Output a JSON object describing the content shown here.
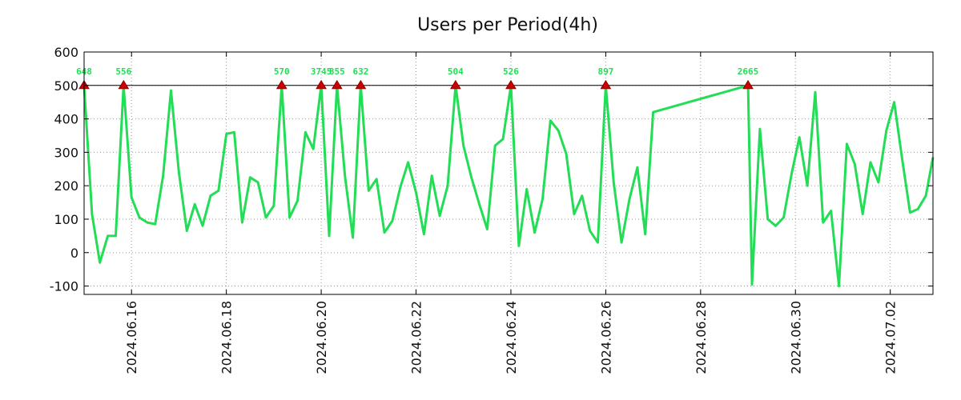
{
  "chart_data": {
    "type": "line",
    "title": "Users per Period(4h)",
    "xlabel": "",
    "ylabel": "",
    "x_unit": "days since 2024.06.15 00:00",
    "xlim": [
      0,
      17.9
    ],
    "ylim": [
      -125,
      600
    ],
    "yticks": [
      -100,
      0,
      100,
      200,
      300,
      400,
      500,
      600
    ],
    "xticks": [
      {
        "x": 1.0,
        "label": "2024.06.16"
      },
      {
        "x": 3.0,
        "label": "2024.06.18"
      },
      {
        "x": 5.0,
        "label": "2024.06.20"
      },
      {
        "x": 7.0,
        "label": "2024.06.22"
      },
      {
        "x": 9.0,
        "label": "2024.06.24"
      },
      {
        "x": 11.0,
        "label": "2024.06.26"
      },
      {
        "x": 13.0,
        "label": "2024.06.28"
      },
      {
        "x": 15.0,
        "label": "2024.06.30"
      },
      {
        "x": 17.0,
        "label": "2024.07.02"
      }
    ],
    "grid": true,
    "threshold": 500,
    "line_color": "#22dd55",
    "threshold_color": "#000000",
    "marker_color": "#cc0000",
    "label_color": "#22dd55",
    "series": [
      {
        "name": "Users",
        "x": [
          0,
          0.167,
          0.333,
          0.5,
          0.667,
          0.833,
          1.0,
          1.167,
          1.333,
          1.5,
          1.667,
          1.833,
          2.0,
          2.167,
          2.333,
          2.5,
          2.667,
          2.833,
          3.0,
          3.167,
          3.333,
          3.5,
          3.667,
          3.833,
          4.0,
          4.167,
          4.333,
          4.5,
          4.667,
          4.833,
          5.0,
          5.167,
          5.333,
          5.5,
          5.667,
          5.833,
          6.0,
          6.167,
          6.333,
          6.5,
          6.667,
          6.833,
          7.0,
          7.167,
          7.333,
          7.5,
          7.667,
          7.833,
          8.0,
          8.167,
          8.333,
          8.5,
          8.667,
          8.833,
          9.0,
          9.167,
          9.333,
          9.5,
          9.667,
          9.833,
          10.0,
          10.167,
          10.333,
          10.5,
          10.667,
          10.833,
          11.0,
          11.167,
          11.333,
          11.5,
          11.667,
          11.833,
          12.0,
          14.0,
          14.083,
          14.25,
          14.417,
          14.583,
          14.75,
          14.917,
          15.083,
          15.25,
          15.417,
          15.583,
          15.75,
          15.917,
          16.083,
          16.25,
          16.417,
          16.583,
          16.75,
          16.917,
          17.083,
          17.25,
          17.417,
          17.583,
          17.75,
          17.9
        ],
        "y": [
          500,
          115,
          -30,
          50,
          50,
          500,
          165,
          105,
          90,
          85,
          230,
          485,
          240,
          65,
          145,
          80,
          170,
          185,
          355,
          360,
          90,
          225,
          210,
          105,
          140,
          500,
          105,
          155,
          360,
          310,
          500,
          50,
          500,
          230,
          45,
          500,
          185,
          220,
          60,
          95,
          195,
          270,
          180,
          55,
          230,
          110,
          200,
          500,
          320,
          225,
          145,
          70,
          320,
          340,
          500,
          20,
          190,
          60,
          160,
          395,
          365,
          295,
          115,
          170,
          65,
          30,
          500,
          210,
          30,
          160,
          255,
          55,
          420,
          500,
          -95,
          370,
          100,
          80,
          105,
          235,
          345,
          200,
          480,
          90,
          125,
          -100,
          325,
          265,
          115,
          270,
          210,
          365,
          450,
          280,
          120,
          130,
          170,
          285
        ]
      }
    ],
    "annotations": [
      {
        "x": 0,
        "y": 500,
        "text": "648"
      },
      {
        "x": 0.833,
        "y": 500,
        "text": "556"
      },
      {
        "x": 4.167,
        "y": 500,
        "text": "570"
      },
      {
        "x": 5.0,
        "y": 500,
        "text": "3745"
      },
      {
        "x": 5.333,
        "y": 500,
        "text": "855"
      },
      {
        "x": 5.833,
        "y": 500,
        "text": "632"
      },
      {
        "x": 7.833,
        "y": 500,
        "text": "504"
      },
      {
        "x": 9.0,
        "y": 500,
        "text": "526"
      },
      {
        "x": 11.0,
        "y": 500,
        "text": "897"
      },
      {
        "x": 14.0,
        "y": 500,
        "text": "2665"
      }
    ]
  }
}
